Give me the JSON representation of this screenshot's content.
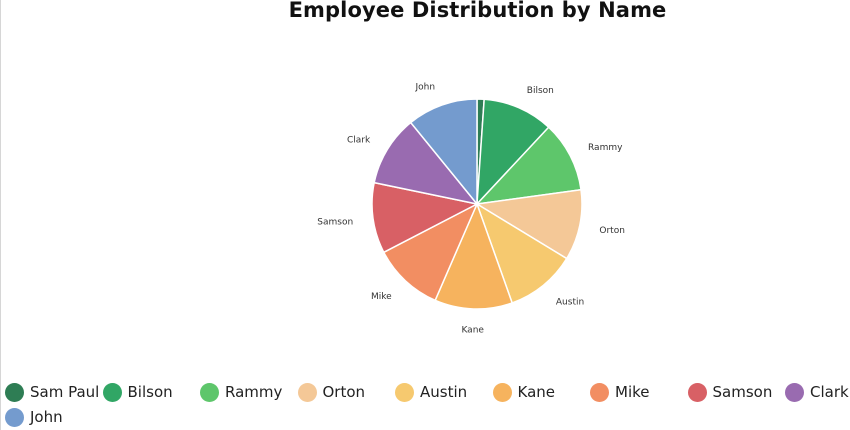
{
  "title": "Employee Distribution by Name",
  "chart_data": {
    "type": "pie",
    "title": "Employee Distribution by Name",
    "legend_position": "bottom",
    "slices": [
      {
        "name": "Sam Paul",
        "value": 1,
        "color": "#2e7d54"
      },
      {
        "name": "Bilson",
        "value": 10,
        "color": "#31a665"
      },
      {
        "name": "Rammy",
        "value": 10,
        "color": "#5ec66b"
      },
      {
        "name": "Orton",
        "value": 10,
        "color": "#f4c897"
      },
      {
        "name": "Austin",
        "value": 10,
        "color": "#f6c96f"
      },
      {
        "name": "Kane",
        "value": 11,
        "color": "#f6b35e"
      },
      {
        "name": "Mike",
        "value": 10,
        "color": "#f28e62"
      },
      {
        "name": "Samson",
        "value": 10,
        "color": "#d86065"
      },
      {
        "name": "Clark",
        "value": 10,
        "color": "#996bb0"
      },
      {
        "name": "John",
        "value": 10,
        "color": "#749bce"
      }
    ]
  }
}
